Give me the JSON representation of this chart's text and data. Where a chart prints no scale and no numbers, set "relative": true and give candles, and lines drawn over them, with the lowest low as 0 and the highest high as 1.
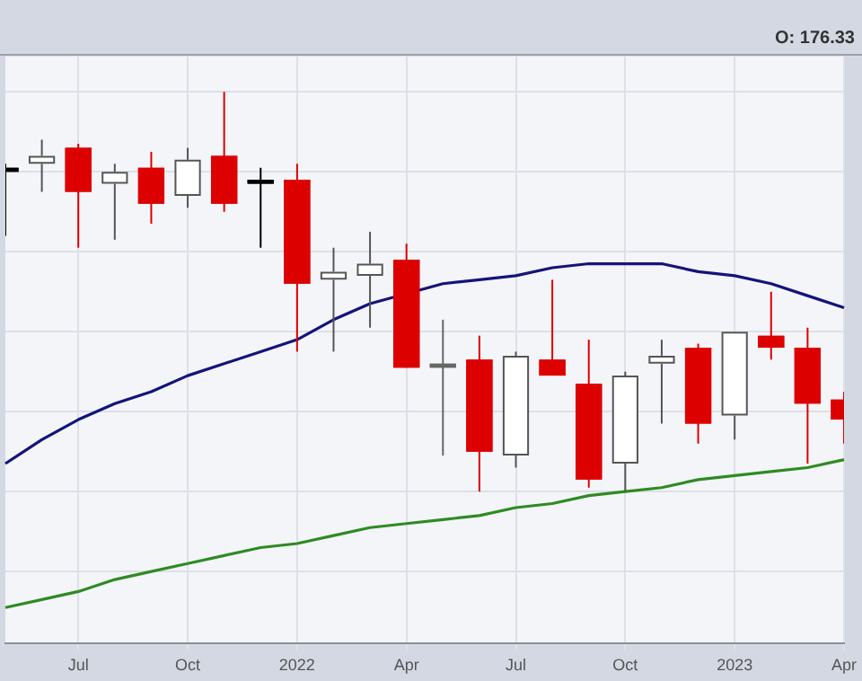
{
  "chart_data": {
    "type": "candlestick",
    "relative": true,
    "grid": true,
    "annotations": [
      "O: 176.33"
    ],
    "categories": [
      null,
      null,
      "Jul",
      null,
      null,
      "Oct",
      null,
      null,
      "2022",
      null,
      null,
      "Apr",
      null,
      null,
      "Jul",
      null,
      null,
      "Oct",
      null,
      null,
      "2023",
      null,
      null,
      "Apr"
    ],
    "ohlc": [
      [
        0.81,
        0.82,
        0.64,
        0.8
      ],
      [
        0.82,
        0.88,
        0.75,
        0.84
      ],
      [
        0.86,
        0.87,
        0.61,
        0.75
      ],
      [
        0.77,
        0.82,
        0.63,
        0.8
      ],
      [
        0.81,
        0.85,
        0.67,
        0.72
      ],
      [
        0.74,
        0.86,
        0.71,
        0.83
      ],
      [
        0.84,
        1,
        0.7,
        0.72
      ],
      [
        0.78,
        0.81,
        0.61,
        0.77
      ],
      [
        0.78,
        0.82,
        0.35,
        0.52
      ],
      [
        0.53,
        0.61,
        0.35,
        0.55
      ],
      [
        0.54,
        0.65,
        0.41,
        0.57
      ],
      [
        0.58,
        0.62,
        0.31,
        0.31
      ],
      [
        0.32,
        0.43,
        0.09,
        0.31
      ],
      [
        0.33,
        0.39,
        0,
        0.1
      ],
      [
        0.09,
        0.35,
        0.06,
        0.34
      ],
      [
        0.33,
        0.53,
        0.29,
        0.29
      ],
      [
        0.27,
        0.38,
        0.01,
        0.03
      ],
      [
        0.07,
        0.3,
        0,
        0.29
      ],
      [
        0.32,
        0.38,
        0.17,
        0.34
      ],
      [
        0.36,
        0.37,
        0.12,
        0.17
      ],
      [
        0.19,
        0.4,
        0.13,
        0.4
      ],
      [
        0.39,
        0.5,
        0.33,
        0.36
      ],
      [
        0.36,
        0.41,
        0.07,
        0.22
      ],
      [
        0.23,
        0.25,
        0.12,
        0.18
      ]
    ],
    "colors": [
      "#000000",
      "#ffffff",
      "#dd0000",
      "#ffffff",
      "#dd0000",
      "#ffffff",
      "#dd0000",
      "#000000",
      "#dd0000",
      "#ffffff",
      "#ffffff",
      "#dd0000",
      "#666666",
      "#dd0000",
      "#ffffff",
      "#dd0000",
      "#dd0000",
      "#ffffff",
      "#ffffff",
      "#dd0000",
      "#ffffff",
      "#dd0000",
      "#dd0000",
      "#dd0000"
    ],
    "series": [
      {
        "type": "line",
        "color": "#14147a",
        "values": [
          0.07,
          0.13,
          0.18,
          0.22,
          0.25,
          0.29,
          0.32,
          0.35,
          0.38,
          0.43,
          0.47,
          null,
          0.52,
          0.53,
          0.54,
          0.56,
          0.57,
          0.57,
          0.57,
          0.55,
          0.54,
          0.52,
          0.49,
          0.46
        ]
      },
      {
        "type": "line",
        "color": "#2e8b22",
        "values": [
          -0.29,
          -0.27,
          -0.25,
          -0.22,
          -0.2,
          -0.18,
          -0.16,
          -0.14,
          -0.13,
          -0.11,
          -0.09,
          -0.08,
          -0.07,
          -0.06,
          -0.04,
          -0.03,
          -0.01,
          0,
          0.01,
          0.03,
          0.04,
          0.05,
          0.06,
          0.08
        ]
      }
    ]
  }
}
